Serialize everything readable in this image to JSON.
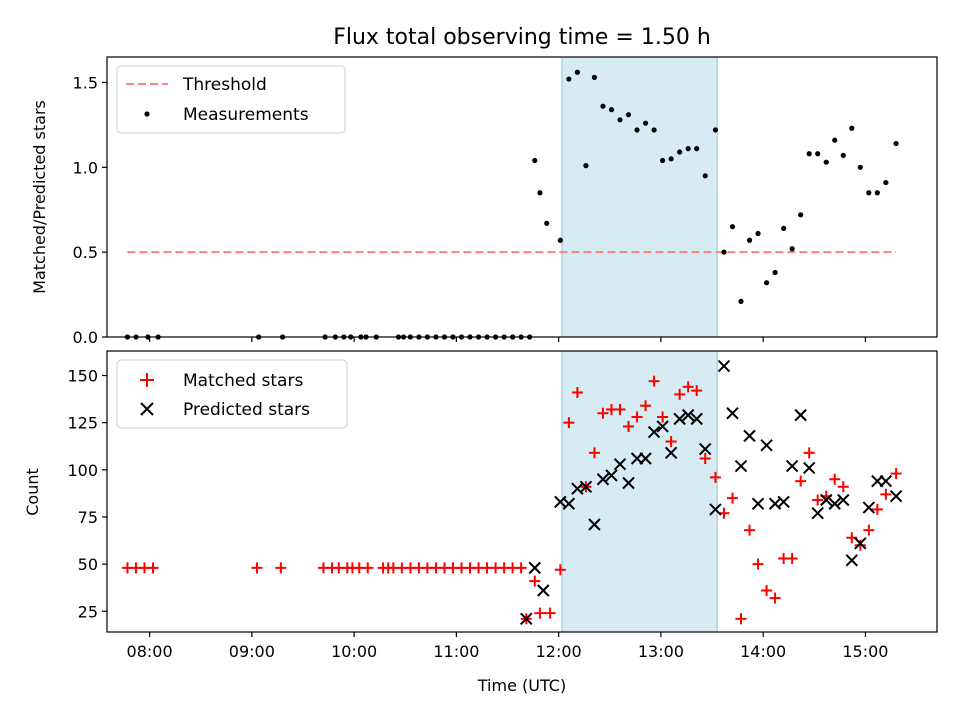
{
  "chart_data": [
    {
      "type": "scatter",
      "title": "Flux total observing time = 1.50 h",
      "ylabel": "Matched/Predicted stars",
      "xlabel": "",
      "xlim": [
        "07:35",
        "15:42"
      ],
      "ylim": [
        0,
        1.65
      ],
      "yticks": [
        0.0,
        0.5,
        1.0,
        1.5
      ],
      "ytick_labels": [
        "0.0",
        "0.5",
        "1.0",
        "1.5"
      ],
      "shaded_span": [
        "12:02",
        "13:33"
      ],
      "threshold": {
        "name": "Threshold",
        "value": 0.5,
        "x": [
          "07:47",
          "15:18"
        ],
        "color": "#ff7f7f"
      },
      "legend_position": "upper-left",
      "series": [
        {
          "name": "Measurements",
          "color": "#000000",
          "points": [
            [
              "07:47",
              0
            ],
            [
              "07:52",
              0
            ],
            [
              "07:59",
              0
            ],
            [
              "08:05",
              0
            ],
            [
              "09:04",
              0
            ],
            [
              "09:18",
              0
            ],
            [
              "09:43",
              0
            ],
            [
              "09:49",
              0
            ],
            [
              "09:54",
              0
            ],
            [
              "09:58",
              0
            ],
            [
              "10:04",
              0
            ],
            [
              "10:07",
              0
            ],
            [
              "10:13",
              0
            ],
            [
              "10:26",
              0
            ],
            [
              "10:29",
              0
            ],
            [
              "10:33",
              0
            ],
            [
              "10:38",
              0
            ],
            [
              "10:43",
              0
            ],
            [
              "10:48",
              0
            ],
            [
              "10:53",
              0
            ],
            [
              "10:58",
              0
            ],
            [
              "11:03",
              0
            ],
            [
              "11:08",
              0
            ],
            [
              "11:13",
              0
            ],
            [
              "11:18",
              0
            ],
            [
              "11:23",
              0
            ],
            [
              "11:28",
              0
            ],
            [
              "11:33",
              0
            ],
            [
              "11:38",
              0
            ],
            [
              "11:43",
              0
            ],
            [
              "11:46",
              1.04
            ],
            [
              "11:49",
              0.85
            ],
            [
              "11:53",
              0.67
            ],
            [
              "12:01",
              0.57
            ],
            [
              "12:06",
              1.52
            ],
            [
              "12:11",
              1.56
            ],
            [
              "12:16",
              1.01
            ],
            [
              "12:21",
              1.53
            ],
            [
              "12:26",
              1.36
            ],
            [
              "12:31",
              1.34
            ],
            [
              "12:36",
              1.28
            ],
            [
              "12:41",
              1.31
            ],
            [
              "12:46",
              1.22
            ],
            [
              "12:51",
              1.26
            ],
            [
              "12:56",
              1.22
            ],
            [
              "13:01",
              1.04
            ],
            [
              "13:06",
              1.05
            ],
            [
              "13:11",
              1.09
            ],
            [
              "13:16",
              1.11
            ],
            [
              "13:21",
              1.11
            ],
            [
              "13:26",
              0.95
            ],
            [
              "13:32",
              1.22
            ],
            [
              "13:37",
              0.5
            ],
            [
              "13:42",
              0.65
            ],
            [
              "13:47",
              0.21
            ],
            [
              "13:52",
              0.57
            ],
            [
              "13:57",
              0.61
            ],
            [
              "14:02",
              0.32
            ],
            [
              "14:07",
              0.38
            ],
            [
              "14:12",
              0.64
            ],
            [
              "14:17",
              0.52
            ],
            [
              "14:22",
              0.72
            ],
            [
              "14:27",
              1.08
            ],
            [
              "14:32",
              1.08
            ],
            [
              "14:37",
              1.03
            ],
            [
              "14:42",
              1.16
            ],
            [
              "14:47",
              1.07
            ],
            [
              "14:52",
              1.23
            ],
            [
              "14:57",
              1.0
            ],
            [
              "15:02",
              0.85
            ],
            [
              "15:07",
              0.85
            ],
            [
              "15:12",
              0.91
            ],
            [
              "15:18",
              1.14
            ]
          ]
        }
      ]
    },
    {
      "type": "scatter",
      "title": "",
      "ylabel": "Count",
      "xlabel": "Time (UTC)",
      "xlim": [
        "07:35",
        "15:42"
      ],
      "ylim": [
        14,
        163
      ],
      "yticks": [
        25,
        50,
        75,
        100,
        125,
        150
      ],
      "ytick_labels": [
        "25",
        "50",
        "75",
        "100",
        "125",
        "150"
      ],
      "xticks": [
        "08:00",
        "09:00",
        "10:00",
        "11:00",
        "12:00",
        "13:00",
        "14:00",
        "15:00"
      ],
      "xtick_labels": [
        "08:00",
        "09:00",
        "10:00",
        "11:00",
        "12:00",
        "13:00",
        "14:00",
        "15:00"
      ],
      "shaded_span": [
        "12:02",
        "13:33"
      ],
      "legend_position": "upper-left",
      "series": [
        {
          "name": "Matched stars",
          "marker": "plus",
          "color": "#ff0000",
          "points": [
            [
              "07:47",
              48
            ],
            [
              "07:52",
              48
            ],
            [
              "07:57",
              48
            ],
            [
              "08:02",
              48
            ],
            [
              "09:03",
              48
            ],
            [
              "09:17",
              48
            ],
            [
              "09:42",
              48
            ],
            [
              "09:47",
              48
            ],
            [
              "09:51",
              48
            ],
            [
              "09:56",
              48
            ],
            [
              "09:59",
              48
            ],
            [
              "10:03",
              48
            ],
            [
              "10:08",
              48
            ],
            [
              "10:17",
              48
            ],
            [
              "10:20",
              48
            ],
            [
              "10:23",
              48
            ],
            [
              "10:28",
              48
            ],
            [
              "10:33",
              48
            ],
            [
              "10:38",
              48
            ],
            [
              "10:43",
              48
            ],
            [
              "10:48",
              48
            ],
            [
              "10:53",
              48
            ],
            [
              "10:58",
              48
            ],
            [
              "11:03",
              48
            ],
            [
              "11:08",
              48
            ],
            [
              "11:13",
              48
            ],
            [
              "11:18",
              48
            ],
            [
              "11:23",
              48
            ],
            [
              "11:28",
              48
            ],
            [
              "11:33",
              48
            ],
            [
              "11:38",
              48
            ],
            [
              "11:41",
              21
            ],
            [
              "11:46",
              41
            ],
            [
              "11:49",
              24
            ],
            [
              "11:55",
              24
            ],
            [
              "12:01",
              47
            ],
            [
              "12:06",
              125
            ],
            [
              "12:11",
              141
            ],
            [
              "12:16",
              91
            ],
            [
              "12:21",
              109
            ],
            [
              "12:26",
              130
            ],
            [
              "12:31",
              132
            ],
            [
              "12:36",
              132
            ],
            [
              "12:41",
              123
            ],
            [
              "12:46",
              128
            ],
            [
              "12:51",
              134
            ],
            [
              "12:56",
              147
            ],
            [
              "13:01",
              128
            ],
            [
              "13:06",
              115
            ],
            [
              "13:11",
              140
            ],
            [
              "13:16",
              144
            ],
            [
              "13:21",
              142
            ],
            [
              "13:26",
              106
            ],
            [
              "13:32",
              96
            ],
            [
              "13:37",
              77
            ],
            [
              "13:42",
              85
            ],
            [
              "13:47",
              21
            ],
            [
              "13:52",
              68
            ],
            [
              "13:57",
              50
            ],
            [
              "14:02",
              36
            ],
            [
              "14:07",
              32
            ],
            [
              "14:12",
              53
            ],
            [
              "14:17",
              53
            ],
            [
              "14:22",
              94
            ],
            [
              "14:27",
              109
            ],
            [
              "14:32",
              84
            ],
            [
              "14:37",
              86
            ],
            [
              "14:42",
              95
            ],
            [
              "14:47",
              91
            ],
            [
              "14:52",
              64
            ],
            [
              "14:57",
              60
            ],
            [
              "15:02",
              68
            ],
            [
              "15:07",
              79
            ],
            [
              "15:12",
              87
            ],
            [
              "15:18",
              98
            ]
          ]
        },
        {
          "name": "Predicted stars",
          "marker": "x",
          "color": "#000000",
          "points": [
            [
              "11:41",
              21
            ],
            [
              "11:46",
              48
            ],
            [
              "11:51",
              36
            ],
            [
              "12:01",
              83
            ],
            [
              "12:06",
              82
            ],
            [
              "12:11",
              90
            ],
            [
              "12:16",
              91
            ],
            [
              "12:21",
              71
            ],
            [
              "12:26",
              95
            ],
            [
              "12:31",
              97
            ],
            [
              "12:36",
              103
            ],
            [
              "12:41",
              93
            ],
            [
              "12:46",
              106
            ],
            [
              "12:51",
              106
            ],
            [
              "12:56",
              120
            ],
            [
              "13:01",
              123
            ],
            [
              "13:06",
              109
            ],
            [
              "13:11",
              127
            ],
            [
              "13:16",
              129
            ],
            [
              "13:21",
              127
            ],
            [
              "13:26",
              111
            ],
            [
              "13:32",
              79
            ],
            [
              "13:37",
              155
            ],
            [
              "13:42",
              130
            ],
            [
              "13:47",
              102
            ],
            [
              "13:52",
              118
            ],
            [
              "13:57",
              82
            ],
            [
              "14:02",
              113
            ],
            [
              "14:07",
              82
            ],
            [
              "14:12",
              83
            ],
            [
              "14:17",
              102
            ],
            [
              "14:22",
              129
            ],
            [
              "14:27",
              101
            ],
            [
              "14:32",
              77
            ],
            [
              "14:37",
              84
            ],
            [
              "14:42",
              82
            ],
            [
              "14:47",
              84
            ],
            [
              "14:52",
              52
            ],
            [
              "14:57",
              61
            ],
            [
              "15:02",
              80
            ],
            [
              "15:07",
              94
            ],
            [
              "15:12",
              94
            ],
            [
              "15:18",
              86
            ]
          ]
        }
      ]
    }
  ]
}
